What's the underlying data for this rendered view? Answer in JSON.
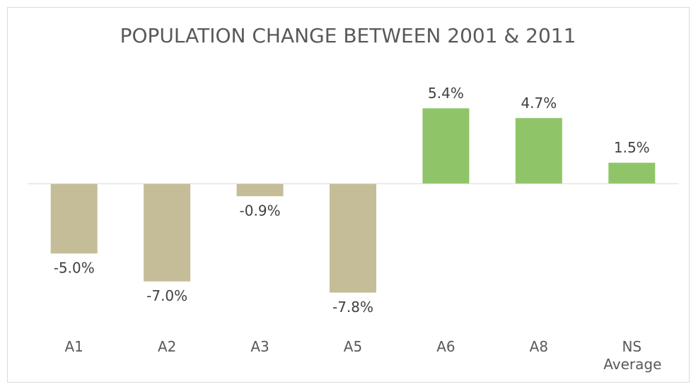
{
  "chart_data": {
    "type": "bar",
    "title": "POPULATION CHANGE BETWEEN 2001 & 2011",
    "categories": [
      "A1",
      "A2",
      "A3",
      "A5",
      "A6",
      "A8",
      "NS Average"
    ],
    "values": [
      -5.0,
      -7.0,
      -0.9,
      -7.8,
      5.4,
      4.7,
      1.5
    ],
    "value_labels": [
      "-5.0%",
      "-7.0%",
      "-0.9%",
      "-7.8%",
      "5.4%",
      "4.7%",
      "1.5%"
    ],
    "colors": [
      "#c4bd97",
      "#c4bd97",
      "#c4bd97",
      "#c4bd97",
      "#8fc568",
      "#8fc568",
      "#8fc568"
    ],
    "ylim": [
      -10,
      8
    ]
  }
}
